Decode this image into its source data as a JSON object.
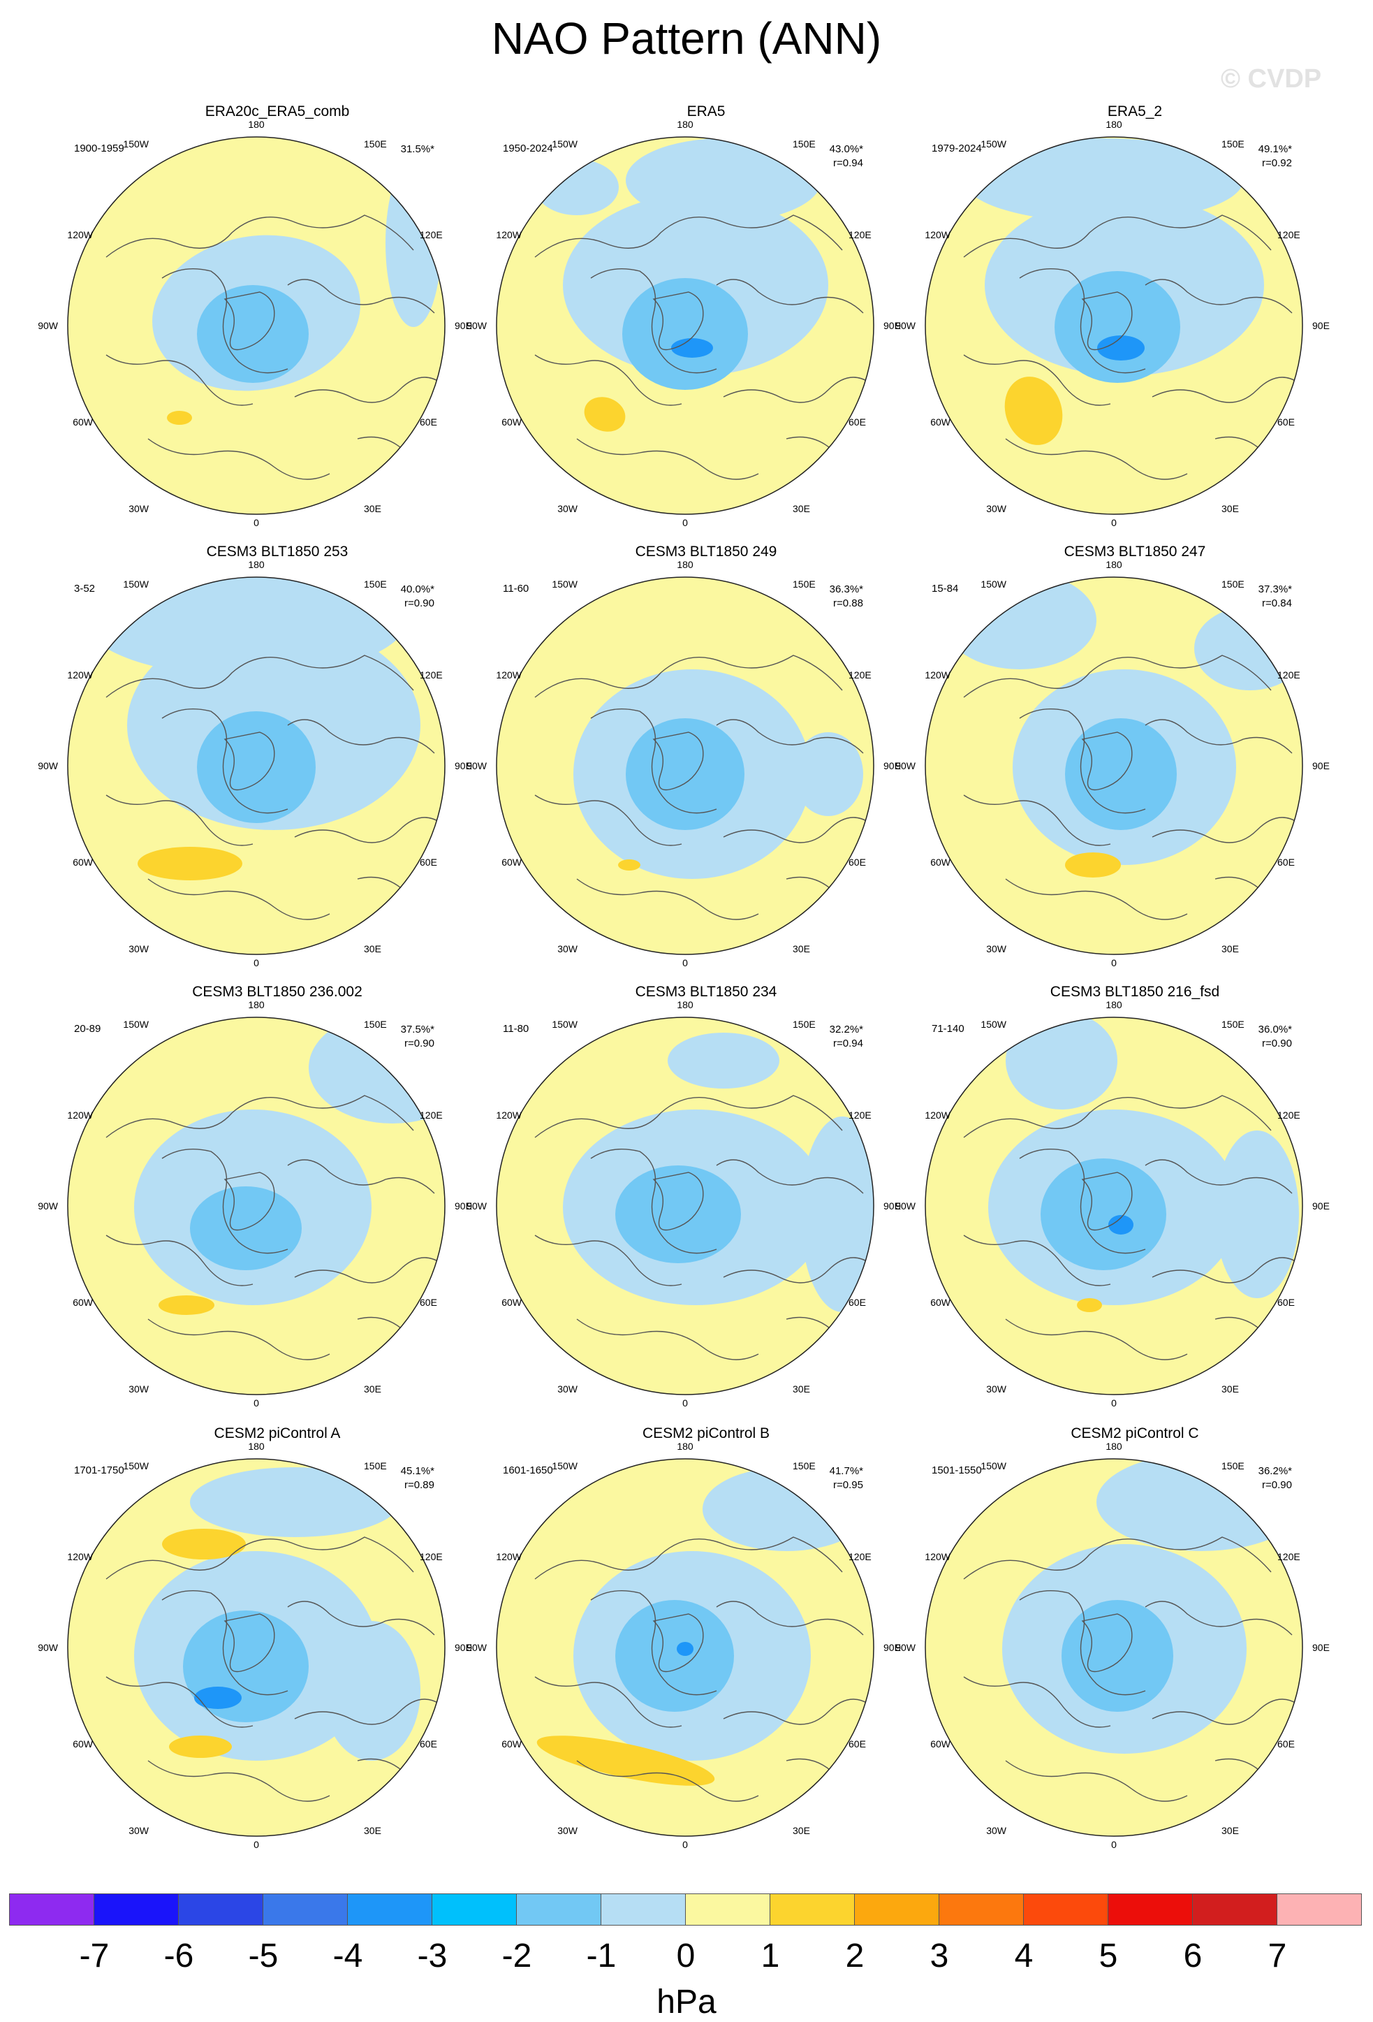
{
  "title": "NAO Pattern (ANN)",
  "watermark": "© CVDP",
  "lon_labels": {
    "top": "180",
    "top_left": "150W",
    "top_right": "150E",
    "upper_left": "120W",
    "upper_right": "120E",
    "left": "90W",
    "right": "90E",
    "lower_left": "60W",
    "lower_right": "60E",
    "bottom_left": "30W",
    "bottom_right": "30E",
    "bottom": "0"
  },
  "panels": [
    {
      "title": "ERA20c_ERA5_comb",
      "years": "1900-1959",
      "pct": "31.5%*",
      "r": ""
    },
    {
      "title": "ERA5",
      "years": "1950-2024",
      "pct": "43.0%*",
      "r": "r=0.94"
    },
    {
      "title": "ERA5_2",
      "years": "1979-2024",
      "pct": "49.1%*",
      "r": "r=0.92"
    },
    {
      "title": "CESM3 BLT1850 253",
      "years": "3-52",
      "pct": "40.0%*",
      "r": "r=0.90"
    },
    {
      "title": "CESM3 BLT1850 249",
      "years": "11-60",
      "pct": "36.3%*",
      "r": "r=0.88"
    },
    {
      "title": "CESM3 BLT1850 247",
      "years": "15-84",
      "pct": "37.3%*",
      "r": "r=0.84"
    },
    {
      "title": "CESM3 BLT1850 236.002",
      "years": "20-89",
      "pct": "37.5%*",
      "r": "r=0.90"
    },
    {
      "title": "CESM3 BLT1850 234",
      "years": "11-80",
      "pct": "32.2%*",
      "r": "r=0.94"
    },
    {
      "title": "CESM3 BLT1850 216_fsd",
      "years": "71-140",
      "pct": "36.0%*",
      "r": "r=0.90"
    },
    {
      "title": "CESM2 piControl A",
      "years": "1701-1750",
      "pct": "45.1%*",
      "r": "r=0.89"
    },
    {
      "title": "CESM2 piControl B",
      "years": "1601-1650",
      "pct": "41.7%*",
      "r": "r=0.95"
    },
    {
      "title": "CESM2 piControl C",
      "years": "1501-1550",
      "pct": "36.2%*",
      "r": "r=0.90"
    }
  ],
  "colorbar": {
    "colors": [
      "#8e2af0",
      "#1a14fa",
      "#2b46e6",
      "#3a78ea",
      "#1e96f8",
      "#00c0fc",
      "#72c8f4",
      "#b6def4",
      "#fbf8a0",
      "#fcd42e",
      "#fca80e",
      "#fc780e",
      "#fc4a0c",
      "#ec0e0a",
      "#d21e1e",
      "#fdb2b4"
    ],
    "labels": [
      "-7",
      "-6",
      "-5",
      "-4",
      "-3",
      "-2",
      "-1",
      "0",
      "1",
      "2",
      "3",
      "4",
      "5",
      "6",
      "7"
    ],
    "units": "hPa"
  },
  "fill_colors": {
    "positive_weak": "#fbf8a0",
    "positive_mod": "#fcd42e",
    "negative_weak": "#b6def4",
    "negative_mod": "#72c8f4",
    "negative_strong": "#1e96f8",
    "coast": "#555555"
  }
}
